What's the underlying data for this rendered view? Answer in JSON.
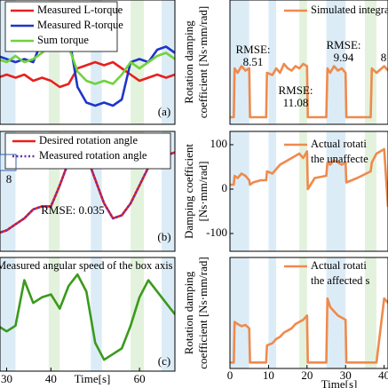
{
  "chart_data": [
    {
      "type": "line",
      "panel_label": "(a)",
      "xlim": [
        28.5,
        68
      ],
      "ylim": [
        -1,
        1
      ],
      "x": [
        28,
        30,
        32,
        34,
        36,
        38,
        40,
        42,
        44,
        46,
        48,
        50,
        52,
        54,
        56,
        58,
        60,
        62,
        64,
        66,
        68
      ],
      "spans": [
        {
          "range": [
            28.5,
            32
          ],
          "color": "#dcecf7"
        },
        {
          "range": [
            39.5,
            42
          ],
          "color": "#e3f2dc"
        },
        {
          "range": [
            49,
            51.5
          ],
          "color": "#dcecf7"
        },
        {
          "range": [
            58,
            61
          ],
          "color": "#e3f2dc"
        },
        {
          "range": [
            65,
            68
          ],
          "color": "#dcecf7"
        }
      ],
      "series": [
        {
          "name": "Measured L-torque",
          "color": "#e8201f",
          "values": [
            -0.25,
            -0.2,
            -0.25,
            -0.2,
            -0.3,
            -0.25,
            -0.3,
            -0.4,
            -0.35,
            -0.1,
            -0.05,
            0,
            -0.05,
            0,
            -0.1,
            -0.2,
            -0.3,
            -0.25,
            -0.2,
            -0.25,
            -0.2
          ]
        },
        {
          "name": "Measured R-torque",
          "color": "#1f35c8",
          "values": [
            0.1,
            0.05,
            0,
            0.05,
            0,
            0.35,
            0.45,
            0.4,
            0.45,
            -0.4,
            -0.65,
            -0.7,
            -0.65,
            -0.7,
            -0.6,
            0,
            0.05,
            0,
            0.2,
            0.25,
            0.15
          ]
        },
        {
          "name": "Sum torque",
          "color": "#6fd33a",
          "values": [
            0.05,
            0,
            0.1,
            0,
            0.05,
            0.15,
            0.3,
            0.2,
            0.25,
            -0.15,
            -0.3,
            -0.35,
            -0.3,
            -0.35,
            -0.2,
            0,
            -0.1,
            0,
            0.1,
            0.15,
            0.05
          ]
        }
      ]
    },
    {
      "type": "line",
      "panel_label": "(b)",
      "xlim": [
        28.5,
        68
      ],
      "ylim": [
        -1,
        1
      ],
      "x": [
        28,
        30,
        32,
        34,
        36,
        38,
        40,
        42,
        44,
        46,
        48,
        50,
        52,
        54,
        56,
        58,
        60,
        62,
        64,
        66,
        68
      ],
      "annotations": [
        "RMSE: 0.035",
        "8"
      ],
      "spans": [
        {
          "range": [
            28.5,
            32
          ],
          "color": "#dcecf7"
        },
        {
          "range": [
            39.5,
            42
          ],
          "color": "#e3f2dc"
        },
        {
          "range": [
            49,
            51.5
          ],
          "color": "#dcecf7"
        },
        {
          "range": [
            58,
            61
          ],
          "color": "#e3f2dc"
        },
        {
          "range": [
            65,
            68
          ],
          "color": "#dcecf7"
        }
      ],
      "series": [
        {
          "name": "Desired rotation angle",
          "color": "#e8201f",
          "values": [
            -0.7,
            -0.65,
            -0.55,
            -0.45,
            -0.3,
            -0.25,
            -0.25,
            0.1,
            0.5,
            0.75,
            0.6,
            0.2,
            -0.2,
            -0.45,
            -0.4,
            -0.2,
            0.1,
            0.4,
            0.55,
            0.6,
            0.65
          ]
        },
        {
          "name": "Measured rotation angle",
          "color": "#6b2fa8",
          "style": "dotted",
          "values": [
            -0.7,
            -0.65,
            -0.55,
            -0.45,
            -0.3,
            -0.25,
            -0.25,
            0.1,
            0.5,
            0.75,
            0.6,
            0.2,
            -0.2,
            -0.45,
            -0.4,
            -0.2,
            0.1,
            0.4,
            0.55,
            0.6,
            0.65
          ]
        }
      ]
    },
    {
      "type": "line",
      "panel_label": "(c)",
      "xlim": [
        28.5,
        68
      ],
      "ylim": [
        -1,
        1
      ],
      "x": [
        28,
        30,
        32,
        34,
        36,
        38,
        40,
        42,
        44,
        46,
        48,
        50,
        52,
        54,
        56,
        58,
        60,
        62,
        64,
        66,
        68
      ],
      "xticks": [
        30,
        40,
        60
      ],
      "xlabel": "Time[s]",
      "spans": [
        {
          "range": [
            28.5,
            32
          ],
          "color": "#dcecf7"
        },
        {
          "range": [
            39.5,
            42
          ],
          "color": "#e3f2dc"
        },
        {
          "range": [
            49,
            51.5
          ],
          "color": "#dcecf7"
        },
        {
          "range": [
            58,
            61
          ],
          "color": "#e3f2dc"
        },
        {
          "range": [
            65,
            68
          ],
          "color": "#dcecf7"
        }
      ],
      "series": [
        {
          "name": "Measured angular speed of the box axis",
          "color": "#3a9a1c",
          "values": [
            -0.2,
            -0.3,
            -0.2,
            0.6,
            0.2,
            0.3,
            0.35,
            0.1,
            0.5,
            0.7,
            0.4,
            -0.5,
            -0.8,
            -0.7,
            -0.6,
            -0.2,
            0.3,
            0.6,
            0.4,
            0.2,
            0
          ]
        }
      ]
    },
    {
      "type": "line",
      "xlim": [
        0,
        41
      ],
      "ylim": [
        -16,
        264
      ],
      "ylabel": [
        "Rotation damping",
        "coefficient [Ns·mm/rad]"
      ],
      "annotations": [
        "RMSE:",
        "8.51",
        "RMSE:",
        "11.08",
        "RMSE:",
        "9.94",
        "8"
      ],
      "x": [
        0,
        1,
        1.2,
        2,
        3,
        4,
        5,
        5.2,
        6,
        8,
        9.4,
        9.6,
        11,
        12,
        13,
        14,
        15,
        16,
        17,
        18,
        19,
        20,
        20.2,
        22,
        25,
        25.3,
        26,
        27,
        28,
        29,
        30,
        30.2,
        33,
        36.5,
        36.8,
        38,
        40,
        41
      ],
      "spans": [
        {
          "range": [
            0,
            5
          ],
          "color": "#dcecf7"
        },
        {
          "range": [
            10,
            12
          ],
          "color": "#dcecf7"
        },
        {
          "range": [
            18,
            20
          ],
          "color": "#e3f2dc"
        },
        {
          "range": [
            25,
            30
          ],
          "color": "#dcecf7"
        },
        {
          "range": [
            35,
            38
          ],
          "color": "#e3f2dc"
        }
      ],
      "series": [
        {
          "name": [
            "Simulated integra"
          ],
          "color": "#ef8a4c",
          "values": [
            0,
            0,
            110,
            100,
            115,
            105,
            110,
            0,
            0,
            0,
            0,
            100,
            95,
            110,
            100,
            120,
            110,
            105,
            115,
            110,
            120,
            115,
            0,
            0,
            0,
            110,
            100,
            115,
            105,
            110,
            100,
            0,
            0,
            0,
            110,
            100,
            115,
            105
          ]
        }
      ]
    },
    {
      "type": "line",
      "xlim": [
        0,
        41
      ],
      "ylim": [
        -140,
        130
      ],
      "yticks": [
        100,
        0,
        -100
      ],
      "ylabel": [
        "Damping coefficient",
        "[Ns·mm/rad]"
      ],
      "x": [
        0,
        1,
        1.2,
        2,
        3,
        4,
        5,
        5.2,
        6,
        8,
        9.4,
        9.6,
        11,
        12,
        13,
        14,
        15,
        16,
        17,
        18,
        19,
        20,
        20.2,
        22,
        25,
        25.3,
        26,
        27,
        28,
        29,
        30,
        30.2,
        33,
        36.5,
        36.8,
        38,
        40,
        41
      ],
      "spans": [
        {
          "range": [
            0,
            5
          ],
          "color": "#dcecf7"
        },
        {
          "range": [
            10,
            12
          ],
          "color": "#dcecf7"
        },
        {
          "range": [
            18,
            20
          ],
          "color": "#e3f2dc"
        },
        {
          "range": [
            25,
            30
          ],
          "color": "#dcecf7"
        },
        {
          "range": [
            35,
            38
          ],
          "color": "#e3f2dc"
        }
      ],
      "series": [
        {
          "name": [
            "Actual rotati",
            "the unaffecte"
          ],
          "color": "#ef8a4c",
          "values": [
            10,
            10,
            30,
            25,
            35,
            30,
            20,
            10,
            15,
            20,
            20,
            40,
            35,
            45,
            55,
            60,
            65,
            70,
            75,
            80,
            70,
            85,
            0,
            25,
            30,
            60,
            55,
            65,
            60,
            55,
            60,
            15,
            25,
            40,
            60,
            80,
            90,
            -40
          ]
        }
      ]
    },
    {
      "type": "line",
      "xlim": [
        0,
        41
      ],
      "ylim": [
        -14,
        246
      ],
      "ylabel": [
        "Rotation damping",
        "coefficient [Ns·mm/rad]"
      ],
      "xticks": [
        0,
        10,
        20,
        30,
        40
      ],
      "xlabel": "Time[s]",
      "x": [
        0,
        1,
        1.2,
        2,
        3,
        4,
        5,
        5.2,
        6,
        8,
        9.4,
        9.6,
        11,
        12,
        13,
        14,
        15,
        16,
        17,
        18,
        19,
        20,
        20.2,
        22,
        25,
        25.3,
        26,
        27,
        28,
        29,
        30,
        30.2,
        33,
        36.5,
        36.8,
        38,
        40,
        41
      ],
      "spans": [
        {
          "range": [
            0,
            5
          ],
          "color": "#dcecf7"
        },
        {
          "range": [
            10,
            12
          ],
          "color": "#dcecf7"
        },
        {
          "range": [
            18,
            20
          ],
          "color": "#e3f2dc"
        },
        {
          "range": [
            25,
            30
          ],
          "color": "#dcecf7"
        },
        {
          "range": [
            35,
            38
          ],
          "color": "#e3f2dc"
        }
      ],
      "series": [
        {
          "name": [
            "Actual rotati",
            "the affected s"
          ],
          "color": "#ef8a4c",
          "values": [
            0,
            0,
            95,
            90,
            85,
            88,
            80,
            0,
            0,
            0,
            0,
            40,
            45,
            55,
            60,
            70,
            75,
            80,
            90,
            95,
            100,
            110,
            0,
            0,
            0,
            150,
            130,
            120,
            110,
            105,
            100,
            0,
            0,
            0,
            0,
            0,
            150,
            140
          ]
        }
      ]
    }
  ]
}
